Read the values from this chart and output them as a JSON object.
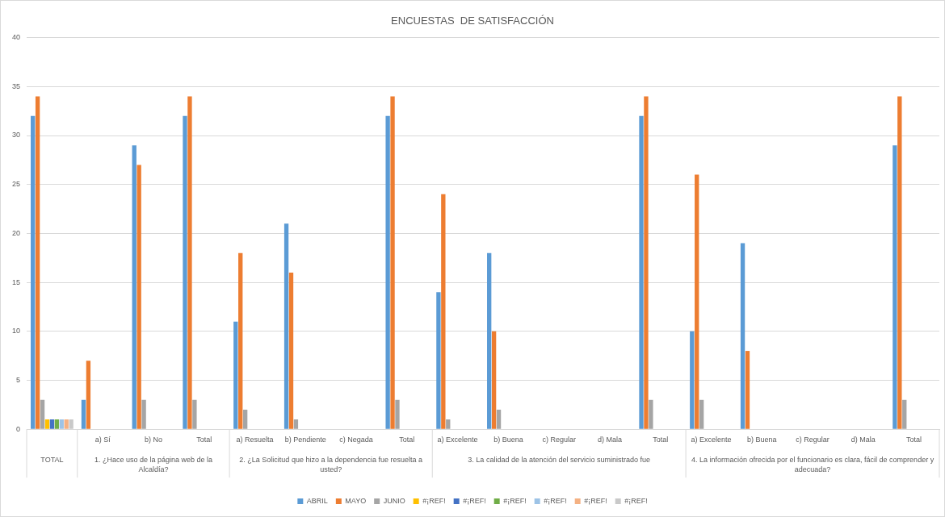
{
  "chart_data": {
    "type": "bar",
    "title": "ENCUESTAS  DE SATISFACCIÓN",
    "categories": [
      null,
      "a) Sí",
      "b) No",
      "Total",
      "a) Resuelta",
      "b) Pendiente",
      "c) Negada",
      "Total",
      "a) Excelente",
      "b) Buena",
      "c) Regular",
      "d) Mala",
      "Total",
      "a) Excelente",
      "b) Buena",
      "c) Regular",
      "d) Mala",
      "Total"
    ],
    "annotations": [
      "TOTAL",
      "1. ¿Hace uso de la página web de la Alcaldía?",
      "2. ¿La Solicitud que hizo a la dependencia fue resuelta a usted?",
      "3. La calidad de la atención del servicio suministrado fue",
      "4. La información ofrecida por el funcionario es clara, fácil de comprender y adecuada?"
    ],
    "series": [
      {
        "name": "ABRIL",
        "color": "#5b9bd5",
        "values": [
          32,
          3,
          29,
          32,
          11,
          21,
          null,
          32,
          14,
          18,
          null,
          null,
          32,
          10,
          19,
          null,
          null,
          29
        ]
      },
      {
        "name": "MAYO",
        "color": "#ed7d31",
        "values": [
          34,
          7,
          27,
          34,
          18,
          16,
          null,
          34,
          24,
          10,
          null,
          null,
          34,
          26,
          8,
          null,
          null,
          34
        ]
      },
      {
        "name": "JUNIO",
        "color": "#a5a5a5",
        "values": [
          3,
          null,
          3,
          3,
          2,
          1,
          null,
          3,
          1,
          2,
          null,
          null,
          3,
          3,
          null,
          null,
          null,
          3
        ]
      },
      {
        "name": "#¡REF!",
        "color": "#ffc000",
        "values": [
          1,
          null,
          null,
          null,
          null,
          null,
          null,
          null,
          null,
          null,
          null,
          null,
          null,
          null,
          null,
          null,
          null,
          null
        ]
      },
      {
        "name": "#¡REF!",
        "color": "#4472c4",
        "values": [
          1,
          null,
          null,
          null,
          null,
          null,
          null,
          null,
          null,
          null,
          null,
          null,
          null,
          null,
          null,
          null,
          null,
          null
        ]
      },
      {
        "name": "#¡REF!",
        "color": "#70ad47",
        "values": [
          1,
          null,
          null,
          null,
          null,
          null,
          null,
          null,
          null,
          null,
          null,
          null,
          null,
          null,
          null,
          null,
          null,
          null
        ]
      },
      {
        "name": "#¡REF!",
        "color": "#9dc3e6",
        "values": [
          1,
          null,
          null,
          null,
          null,
          null,
          null,
          null,
          null,
          null,
          null,
          null,
          null,
          null,
          null,
          null,
          null,
          null
        ]
      },
      {
        "name": "#¡REF!",
        "color": "#f4b183",
        "values": [
          1,
          null,
          null,
          null,
          null,
          null,
          null,
          null,
          null,
          null,
          null,
          null,
          null,
          null,
          null,
          null,
          null,
          null
        ]
      },
      {
        "name": "#¡REF!",
        "color": "#c9c9c9",
        "values": [
          1,
          null,
          null,
          null,
          null,
          null,
          null,
          null,
          null,
          null,
          null,
          null,
          null,
          null,
          null,
          null,
          null,
          null
        ]
      }
    ],
    "ylim": [
      0,
      40
    ],
    "yticks": [
      0,
      5,
      10,
      15,
      20,
      25,
      30,
      35,
      40
    ],
    "grid": "y",
    "legend": "bottom"
  }
}
